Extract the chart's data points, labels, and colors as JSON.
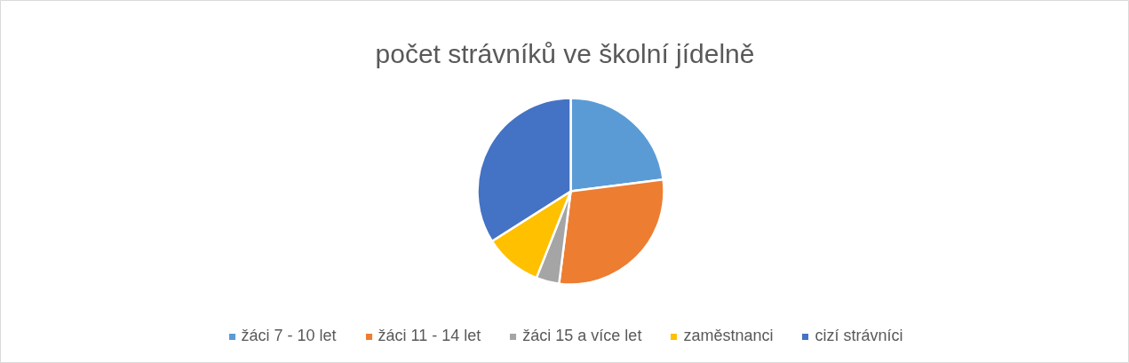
{
  "chart_data": {
    "type": "pie",
    "title": "počet strávníků ve školní jídelně",
    "categories": [
      "žáci 7 - 10 let",
      "žáci 11 - 14 let",
      "žáci 15 a více let",
      "zaměstnanci",
      "cizí strávníci"
    ],
    "values": [
      23,
      29,
      4,
      10,
      34
    ],
    "colors": [
      "#5b9bd5",
      "#ed7d31",
      "#a5a5a5",
      "#ffc000",
      "#4472c4"
    ],
    "legend": "bottom"
  }
}
